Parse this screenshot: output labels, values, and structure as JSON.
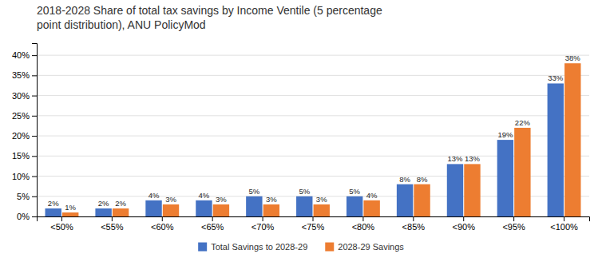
{
  "chart_data": {
    "type": "bar",
    "title": "2018-2028 Share of total tax savings by Income Ventile (5 percentage\npoint distribution), ANU PolicyMod",
    "categories": [
      "<50%",
      "<55%",
      "<60%",
      "<65%",
      "<70%",
      "<75%",
      "<80%",
      "<85%",
      "<90%",
      "<95%",
      "<100%"
    ],
    "series": [
      {
        "name": "Total Savings to 2028-29",
        "color": "#4472C4",
        "values": [
          2,
          2,
          4,
          4,
          5,
          5,
          5,
          8,
          13,
          19,
          33
        ],
        "value_labels": [
          "2%",
          "2%",
          "4%",
          "4%",
          "5%",
          "5%",
          "5%",
          "8%",
          "13%",
          "19%",
          "33%"
        ]
      },
      {
        "name": "2028-29 Savings",
        "color": "#ED7D31",
        "values": [
          1,
          2,
          3,
          3,
          3,
          3,
          4,
          8,
          13,
          22,
          38
        ],
        "value_labels": [
          "1%",
          "2%",
          "3%",
          "3%",
          "3%",
          "3%",
          "4%",
          "8%",
          "13%",
          "22%",
          "38%"
        ]
      }
    ],
    "ylim": [
      0,
      43
    ],
    "yticks": [
      {
        "value": 0,
        "label": "0%"
      },
      {
        "value": 5,
        "label": "5%"
      },
      {
        "value": 10,
        "label": "10%"
      },
      {
        "value": 15,
        "label": "15%"
      },
      {
        "value": 20,
        "label": "20%"
      },
      {
        "value": 25,
        "label": "25%"
      },
      {
        "value": 30,
        "label": "30%"
      },
      {
        "value": 35,
        "label": "35%"
      },
      {
        "value": 40,
        "label": "40%"
      }
    ],
    "grid": true,
    "legend": "bottom",
    "data_labels": true
  }
}
